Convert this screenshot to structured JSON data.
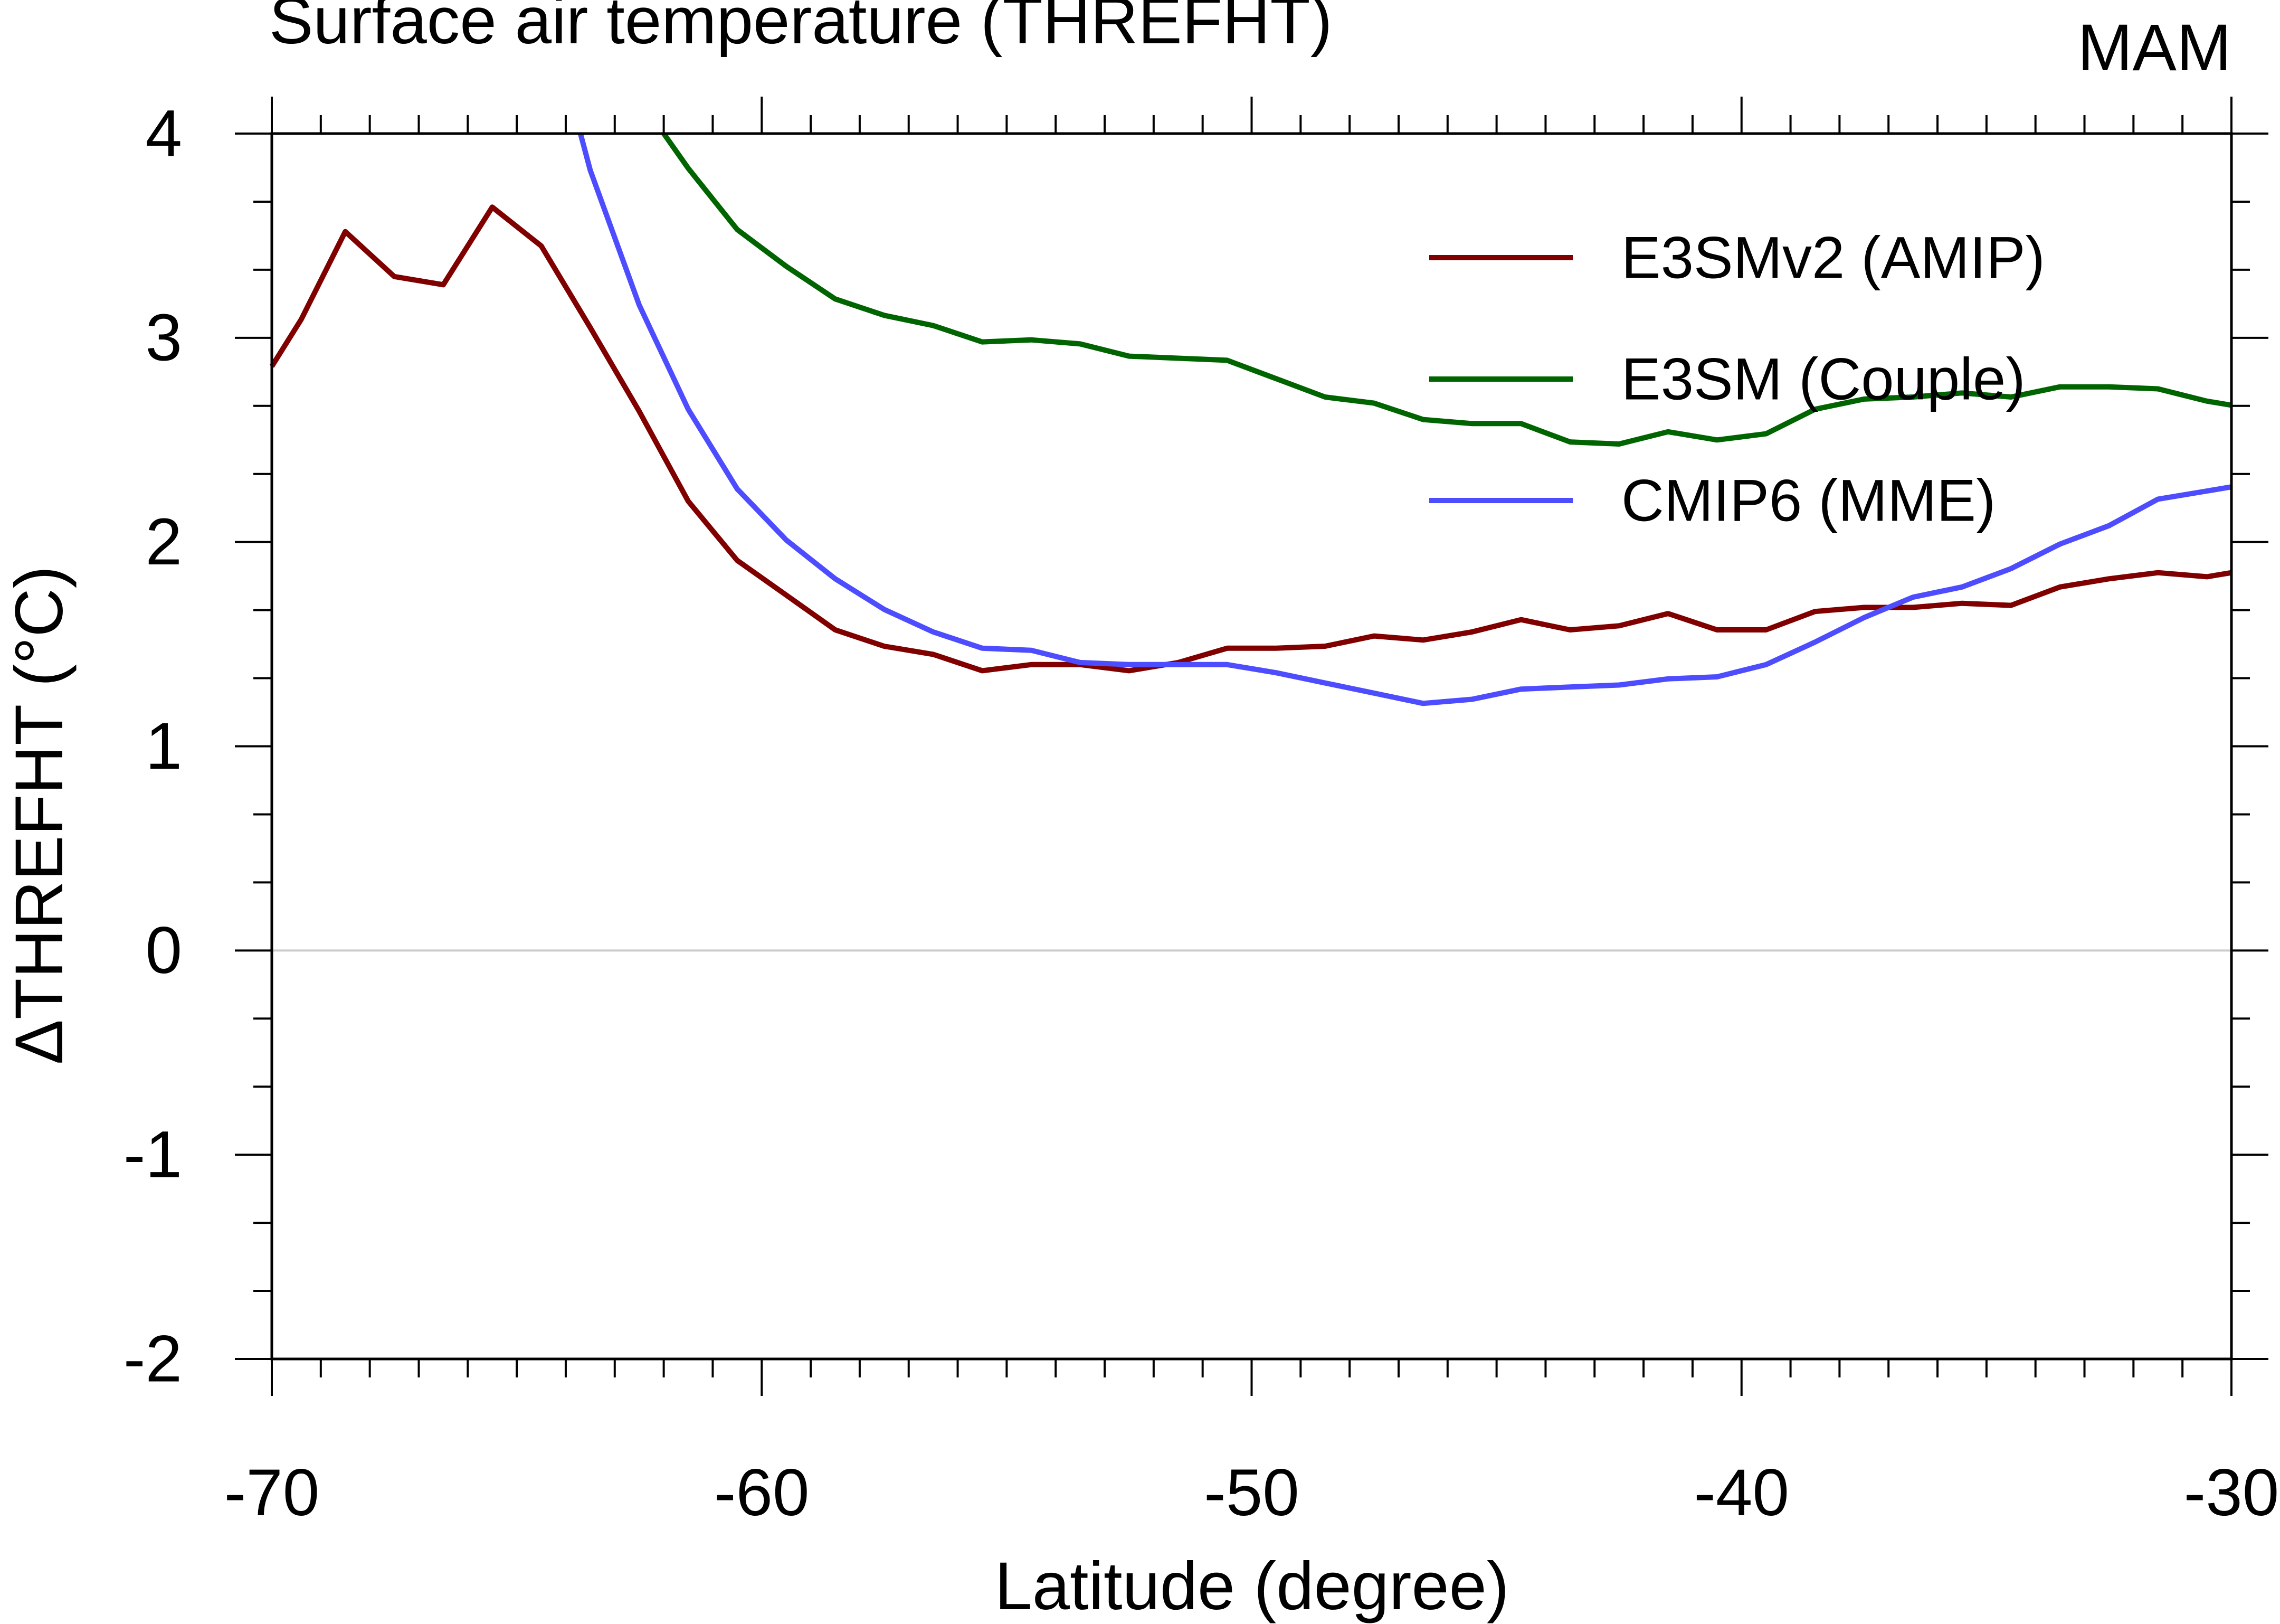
{
  "chart_data": {
    "type": "line",
    "title": "Surface air temperature (THREFHT)",
    "season": "MAM",
    "xlabel": "Latitude (degree)",
    "ylabel": "ΔTHREFHT (°C)",
    "xlim": [
      -70,
      -30
    ],
    "ylim": [
      -2,
      4
    ],
    "xticks": [
      -70,
      -60,
      -50,
      -40,
      -30
    ],
    "xtick_labels": [
      "-70",
      "-60",
      "-50",
      "-40",
      "-30"
    ],
    "yticks": [
      -2,
      -1,
      0,
      1,
      2,
      3,
      4
    ],
    "ytick_labels": [
      "-2",
      "-1",
      "0",
      "1",
      "2",
      "3",
      "4"
    ],
    "zero_line": true,
    "legend_position": "top-right",
    "series": [
      {
        "name": "E3SMv2 (AMIP)",
        "color": "#800000",
        "x": [
          -70,
          -69.4,
          -68.5,
          -67.5,
          -66.5,
          -65.5,
          -64.5,
          -63.5,
          -62.5,
          -61.5,
          -60.5,
          -59.5,
          -58.5,
          -57.5,
          -56.5,
          -55.5,
          -54.5,
          -53.5,
          -52.5,
          -51.5,
          -50.5,
          -49.5,
          -48.5,
          -47.5,
          -46.5,
          -45.5,
          -44.5,
          -43.5,
          -42.5,
          -41.5,
          -40.5,
          -39.5,
          -38.5,
          -37.5,
          -36.5,
          -35.5,
          -34.5,
          -33.5,
          -32.5,
          -31.5,
          -30.5,
          -30
        ],
        "y": [
          2.86,
          3.09,
          3.52,
          3.3,
          3.26,
          3.64,
          3.45,
          3.05,
          2.64,
          2.2,
          1.91,
          1.74,
          1.57,
          1.49,
          1.45,
          1.37,
          1.4,
          1.4,
          1.37,
          1.41,
          1.48,
          1.48,
          1.49,
          1.54,
          1.52,
          1.56,
          1.62,
          1.57,
          1.59,
          1.65,
          1.57,
          1.57,
          1.66,
          1.68,
          1.68,
          1.7,
          1.69,
          1.78,
          1.82,
          1.85,
          1.83,
          1.85
        ]
      },
      {
        "name": "E3SM (Couple)",
        "color": "#006400",
        "x": [
          -62,
          -61.5,
          -60.5,
          -59.5,
          -58.5,
          -57.5,
          -56.5,
          -55.5,
          -54.5,
          -53.5,
          -52.5,
          -51.5,
          -50.5,
          -49.5,
          -48.5,
          -47.5,
          -46.5,
          -45.5,
          -44.5,
          -43.5,
          -42.5,
          -41.5,
          -40.5,
          -39.5,
          -38.5,
          -37.5,
          -36.5,
          -35.5,
          -34.5,
          -33.5,
          -32.5,
          -31.5,
          -30.5,
          -30
        ],
        "y": [
          4.0,
          3.83,
          3.53,
          3.35,
          3.19,
          3.11,
          3.06,
          2.98,
          2.99,
          2.97,
          2.91,
          2.9,
          2.89,
          2.8,
          2.71,
          2.68,
          2.6,
          2.58,
          2.58,
          2.49,
          2.48,
          2.54,
          2.5,
          2.53,
          2.65,
          2.7,
          2.71,
          2.73,
          2.71,
          2.76,
          2.76,
          2.75,
          2.69,
          2.67
        ]
      },
      {
        "name": "CMIP6 (MME)",
        "color": "#4d4dff",
        "x": [
          -63.7,
          -63.5,
          -62.5,
          -61.5,
          -60.5,
          -59.5,
          -58.5,
          -57.5,
          -56.5,
          -55.5,
          -54.5,
          -53.5,
          -52.5,
          -51.5,
          -50.5,
          -49.5,
          -48.5,
          -47.5,
          -46.5,
          -45.5,
          -44.5,
          -43.5,
          -42.5,
          -41.5,
          -40.5,
          -39.5,
          -38.5,
          -37.5,
          -36.5,
          -35.5,
          -34.5,
          -33.5,
          -32.5,
          -31.5,
          -30.5,
          -30
        ],
        "y": [
          4.0,
          3.82,
          3.16,
          2.65,
          2.26,
          2.01,
          1.82,
          1.67,
          1.56,
          1.48,
          1.47,
          1.41,
          1.4,
          1.4,
          1.4,
          1.36,
          1.31,
          1.26,
          1.21,
          1.23,
          1.28,
          1.29,
          1.3,
          1.33,
          1.34,
          1.4,
          1.51,
          1.63,
          1.73,
          1.78,
          1.87,
          1.99,
          2.08,
          2.21,
          2.25,
          2.27
        ]
      }
    ]
  }
}
